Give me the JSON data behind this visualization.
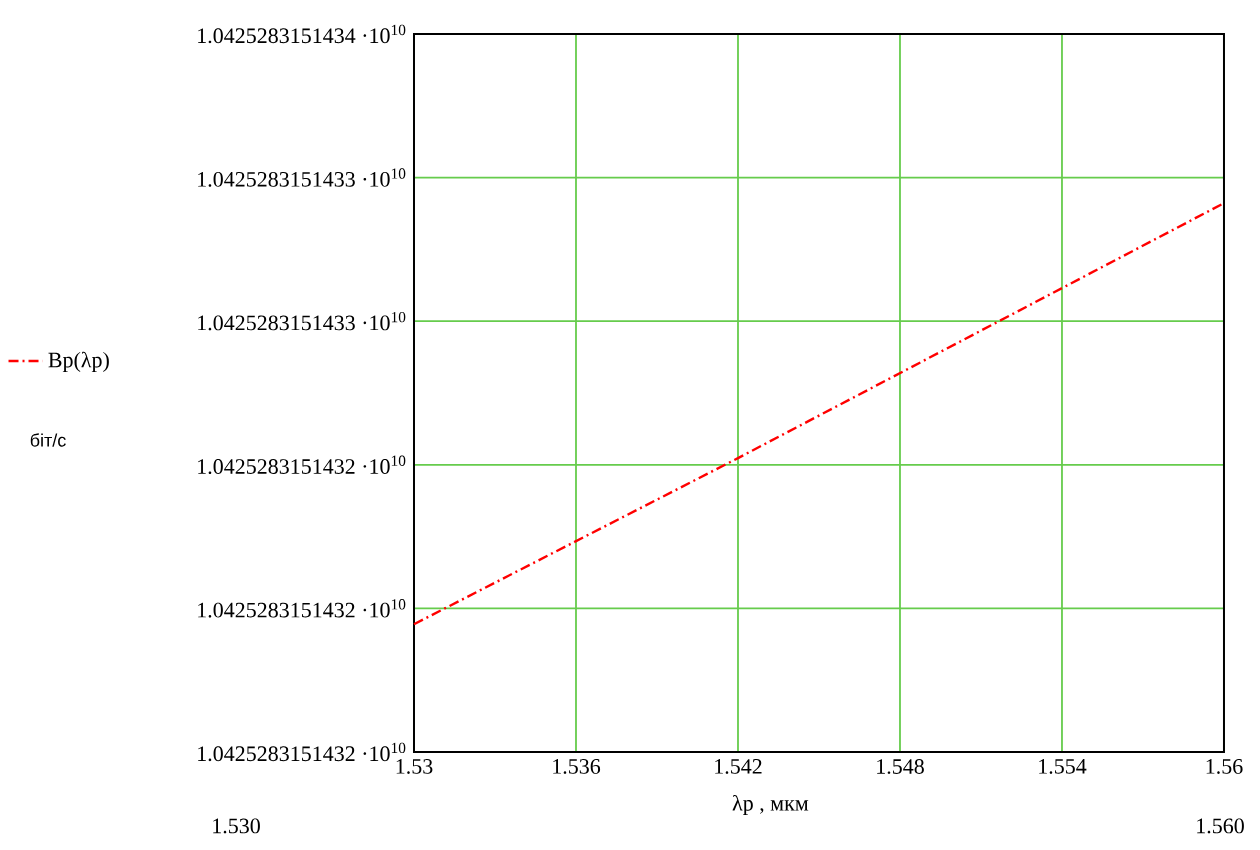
{
  "chart_data": {
    "type": "line",
    "xlabel": "λp , мкм",
    "x": [
      1.53,
      1.542,
      1.56
    ],
    "series": [
      {
        "name": "Bp(λp)",
        "color": "#ff0000",
        "values": [
          10425283151.43195,
          10425283151.43247,
          10425283151.43327
        ]
      }
    ],
    "xlim": [
      1.53,
      1.56
    ],
    "xticks": [
      1.53,
      1.536,
      1.542,
      1.548,
      1.554,
      1.56
    ],
    "ylim": [
      10425283151.43155,
      10425283151.4338
    ],
    "yticks": [
      {
        "value": 10425283151.43155,
        "label": "1.0425283151432 ·10$^{10}$"
      },
      {
        "value": 10425283151.432,
        "label": "1.0425283151432 ·10$^{10}$"
      },
      {
        "value": 10425283151.43245,
        "label": "1.0425283151432 ·10$^{10}$"
      },
      {
        "value": 10425283151.4329,
        "label": "1.0425283151433 ·10$^{10}$"
      },
      {
        "value": 10425283151.43335,
        "label": "1.0425283151433 ·10$^{10}$"
      },
      {
        "value": 10425283151.4338,
        "label": "1.0425283151434 ·10$^{10}$"
      }
    ],
    "grid": true,
    "legend": "left",
    "line_style": "dashed",
    "marker": "none",
    "annotations": [
      "біт/с",
      "1.530",
      "1.560"
    ]
  }
}
